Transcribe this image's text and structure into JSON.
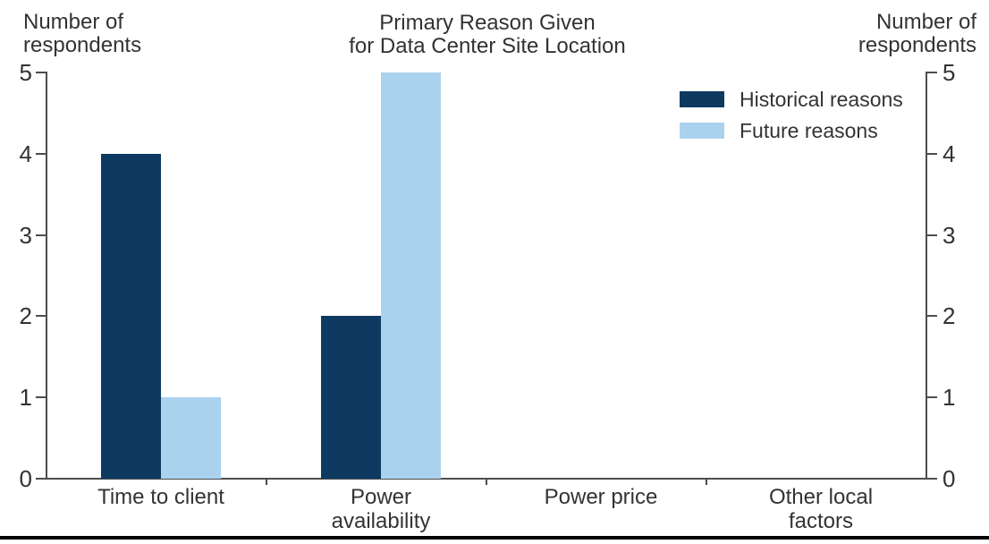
{
  "chart_data": {
    "type": "bar",
    "title": "Primary Reason Given\nfor Data Center Site Location",
    "left_axis_label": "Number of\nrespondents",
    "right_axis_label": "Number of\nrespondents",
    "categories": [
      "Time to client",
      "Power\navailability",
      "Power price",
      "Other local\nfactors"
    ],
    "series": [
      {
        "name": "Historical reasons",
        "color": "#0e3a62",
        "values": [
          4,
          2,
          0,
          0
        ]
      },
      {
        "name": "Future reasons",
        "color": "#aad2ee",
        "values": [
          1,
          5,
          0,
          0
        ]
      }
    ],
    "ylim": [
      0,
      5
    ],
    "yticks": [
      0,
      1,
      2,
      3,
      4,
      5
    ],
    "legend_position": "top-right",
    "grid": false,
    "dual_y_axis": true
  },
  "colors": {
    "axis": "#4d4d4d",
    "text": "#333333",
    "bottom_rule": "#000000"
  }
}
